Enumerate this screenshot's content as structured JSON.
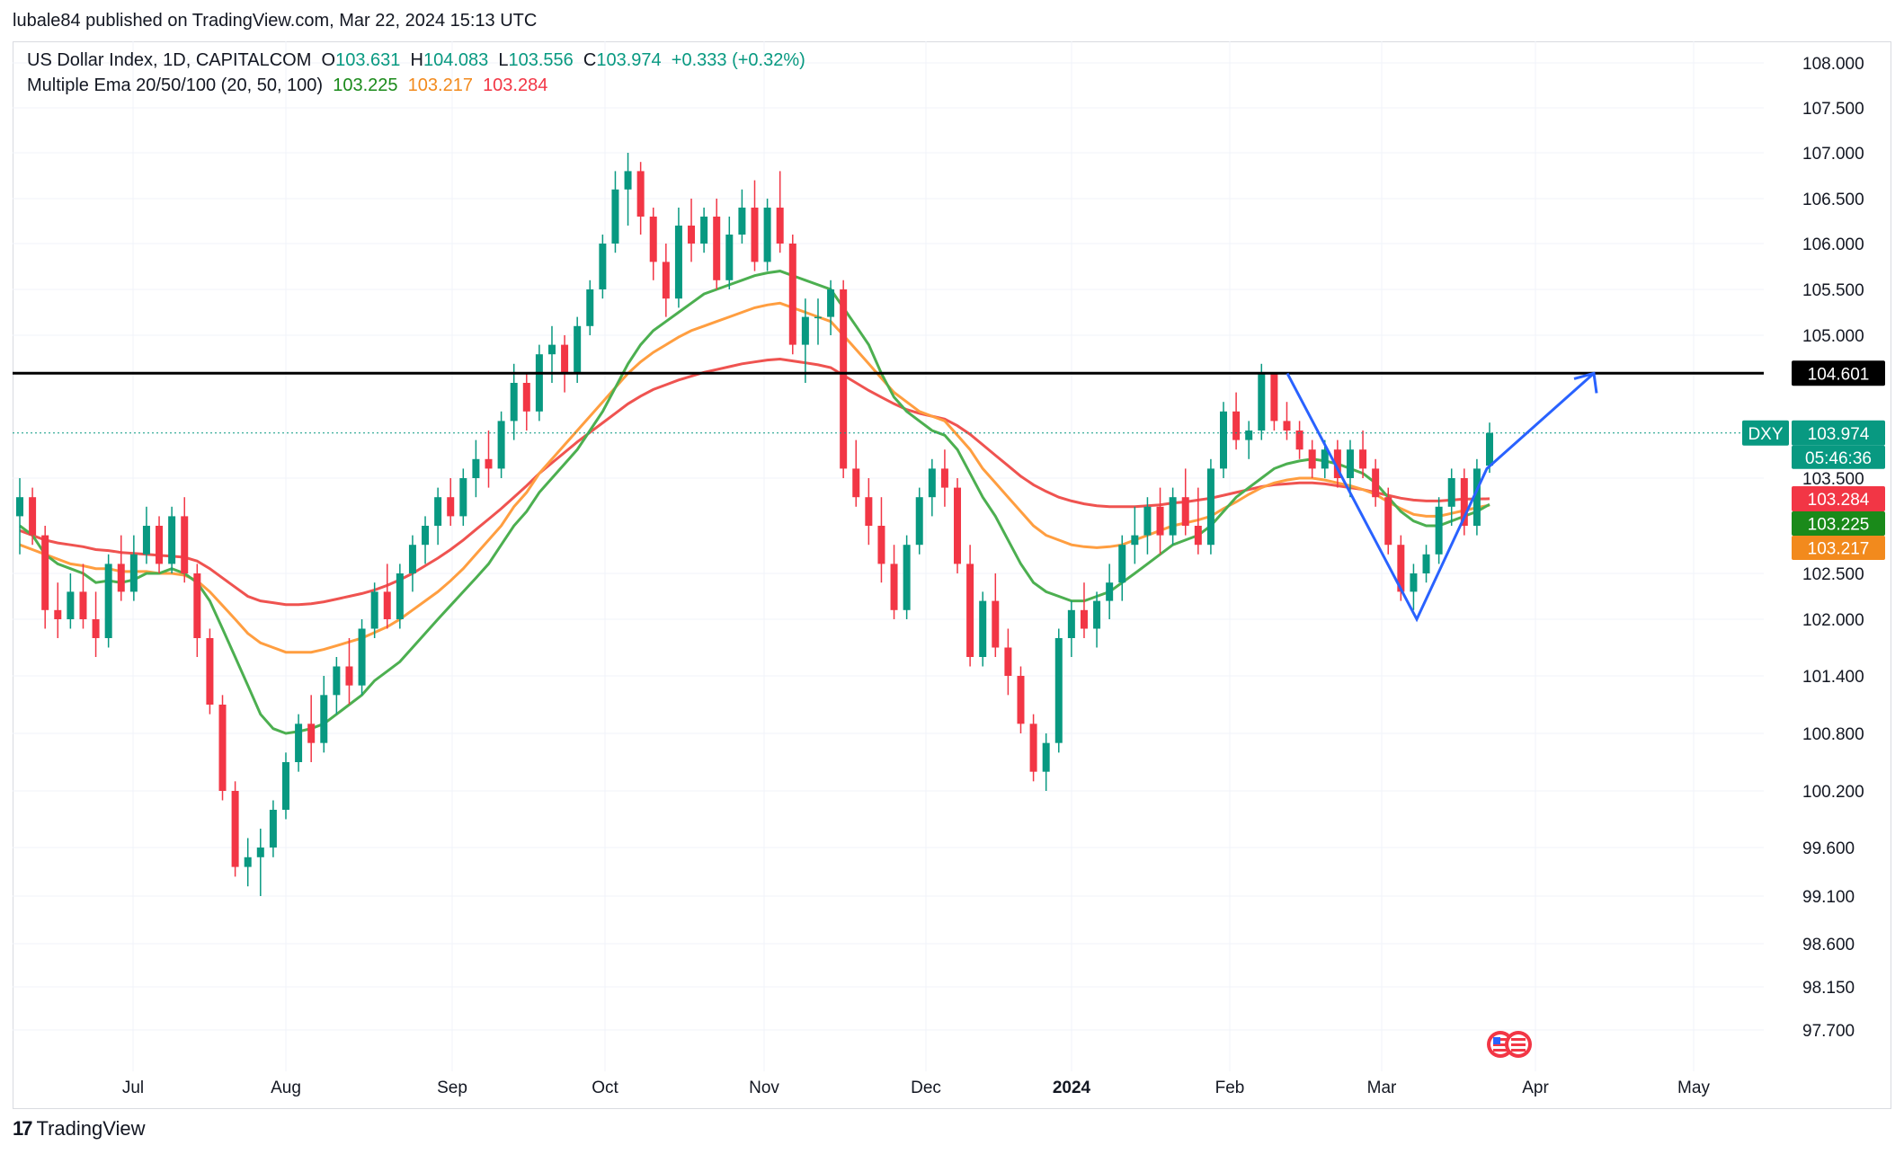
{
  "header": {
    "credit": "lubale84 published on TradingView.com, Mar 22, 2024 15:13 UTC"
  },
  "legend": {
    "symbol": "US Dollar Index, 1D, CAPITALCOM",
    "o_label": "O",
    "o_value": "103.631",
    "h_label": "H",
    "h_value": "104.083",
    "l_label": "L",
    "l_value": "103.556",
    "c_label": "C",
    "c_value": "103.974",
    "change": "+0.333 (+0.32%)",
    "indicator": "Multiple Ema 20/50/100 (20, 50, 100)",
    "ema20": "103.225",
    "ema50": "103.217",
    "ema100": "103.284"
  },
  "footer": {
    "brand": "TradingView",
    "mark": "17"
  },
  "colors": {
    "up": "#089981",
    "down": "#f23645",
    "ema20": "#4caf50",
    "ema50": "#ff9e40",
    "ema100": "#ef5350",
    "resistance": "#000000",
    "pattern": "#2962ff"
  },
  "chart_data": {
    "type": "candlestick",
    "symbol": "DXY",
    "price_axis": {
      "ticks": [
        "108.000",
        "107.500",
        "107.000",
        "106.500",
        "106.000",
        "105.500",
        "105.000",
        "103.500",
        "102.500",
        "102.000",
        "101.400",
        "100.800",
        "100.200",
        "99.600",
        "99.100",
        "98.600",
        "98.150",
        "97.700"
      ],
      "ylim": [
        97.4,
        108.4
      ]
    },
    "time_axis": {
      "ticks": [
        "Jul",
        "Aug",
        "Sep",
        "Oct",
        "Nov",
        "Dec",
        "2024",
        "Feb",
        "Mar",
        "Apr",
        "May"
      ]
    },
    "badges": {
      "resistance": "104.601",
      "symbol_tag": "DXY",
      "last_price": "103.974",
      "countdown": "05:46:36",
      "ema100": "103.284",
      "ema20": "103.225",
      "ema50": "103.217"
    },
    "resistance_level": 104.601,
    "candles": [
      [
        103.1,
        103.5,
        102.7,
        103.3
      ],
      [
        103.3,
        103.4,
        102.8,
        102.9
      ],
      [
        102.9,
        103.0,
        101.9,
        102.1
      ],
      [
        102.1,
        102.4,
        101.8,
        102.0
      ],
      [
        102.0,
        102.5,
        101.9,
        102.3
      ],
      [
        102.3,
        102.6,
        101.9,
        102.0
      ],
      [
        102.0,
        102.3,
        101.6,
        101.8
      ],
      [
        101.8,
        102.7,
        101.7,
        102.6
      ],
      [
        102.6,
        102.9,
        102.2,
        102.3
      ],
      [
        102.3,
        102.9,
        102.2,
        102.7
      ],
      [
        102.7,
        103.2,
        102.6,
        103.0
      ],
      [
        103.0,
        103.1,
        102.5,
        102.6
      ],
      [
        102.6,
        103.2,
        102.5,
        103.1
      ],
      [
        103.1,
        103.3,
        102.4,
        102.5
      ],
      [
        102.5,
        102.6,
        101.6,
        101.8
      ],
      [
        101.8,
        101.9,
        101.0,
        101.1
      ],
      [
        101.1,
        101.2,
        100.1,
        100.2
      ],
      [
        100.2,
        100.3,
        99.3,
        99.4
      ],
      [
        99.4,
        99.7,
        99.2,
        99.5
      ],
      [
        99.5,
        99.8,
        99.1,
        99.6
      ],
      [
        99.6,
        100.1,
        99.5,
        100.0
      ],
      [
        100.0,
        100.6,
        99.9,
        100.5
      ],
      [
        100.5,
        101.0,
        100.4,
        100.9
      ],
      [
        100.9,
        101.2,
        100.5,
        100.7
      ],
      [
        100.7,
        101.4,
        100.6,
        101.2
      ],
      [
        101.2,
        101.6,
        101.0,
        101.5
      ],
      [
        101.5,
        101.8,
        101.1,
        101.3
      ],
      [
        101.3,
        102.0,
        101.2,
        101.9
      ],
      [
        101.9,
        102.4,
        101.8,
        102.3
      ],
      [
        102.3,
        102.6,
        101.9,
        102.0
      ],
      [
        102.0,
        102.6,
        101.9,
        102.5
      ],
      [
        102.5,
        102.9,
        102.3,
        102.8
      ],
      [
        102.8,
        103.1,
        102.6,
        103.0
      ],
      [
        103.0,
        103.4,
        102.8,
        103.3
      ],
      [
        103.3,
        103.5,
        103.0,
        103.1
      ],
      [
        103.1,
        103.6,
        103.0,
        103.5
      ],
      [
        103.5,
        103.9,
        103.3,
        103.7
      ],
      [
        103.7,
        104.0,
        103.4,
        103.6
      ],
      [
        103.6,
        104.2,
        103.5,
        104.1
      ],
      [
        104.1,
        104.7,
        103.9,
        104.5
      ],
      [
        104.5,
        104.6,
        104.0,
        104.2
      ],
      [
        104.2,
        104.9,
        104.1,
        104.8
      ],
      [
        104.8,
        105.1,
        104.5,
        104.9
      ],
      [
        104.9,
        105.0,
        104.4,
        104.6
      ],
      [
        104.6,
        105.2,
        104.5,
        105.1
      ],
      [
        105.1,
        105.6,
        105.0,
        105.5
      ],
      [
        105.5,
        106.1,
        105.4,
        106.0
      ],
      [
        106.0,
        106.8,
        105.9,
        106.6
      ],
      [
        106.6,
        107.0,
        106.2,
        106.8
      ],
      [
        106.8,
        106.9,
        106.1,
        106.3
      ],
      [
        106.3,
        106.4,
        105.6,
        105.8
      ],
      [
        105.8,
        106.0,
        105.2,
        105.4
      ],
      [
        105.4,
        106.4,
        105.3,
        106.2
      ],
      [
        106.2,
        106.5,
        105.8,
        106.0
      ],
      [
        106.0,
        106.4,
        105.9,
        106.3
      ],
      [
        106.3,
        106.5,
        105.5,
        105.6
      ],
      [
        105.6,
        106.3,
        105.5,
        106.1
      ],
      [
        106.1,
        106.6,
        106.0,
        106.4
      ],
      [
        106.4,
        106.7,
        105.7,
        105.8
      ],
      [
        105.8,
        106.5,
        105.7,
        106.4
      ],
      [
        106.4,
        106.8,
        105.9,
        106.0
      ],
      [
        106.0,
        106.1,
        104.8,
        104.9
      ],
      [
        104.9,
        105.4,
        104.5,
        105.2
      ],
      [
        105.2,
        105.4,
        104.9,
        105.2
      ],
      [
        105.2,
        105.6,
        105.0,
        105.5
      ],
      [
        105.5,
        105.6,
        103.5,
        103.6
      ],
      [
        103.6,
        103.9,
        103.2,
        103.3
      ],
      [
        103.3,
        103.5,
        102.8,
        103.0
      ],
      [
        103.0,
        103.3,
        102.4,
        102.6
      ],
      [
        102.6,
        102.8,
        102.0,
        102.1
      ],
      [
        102.1,
        102.9,
        102.0,
        102.8
      ],
      [
        102.8,
        103.4,
        102.7,
        103.3
      ],
      [
        103.3,
        103.7,
        103.1,
        103.6
      ],
      [
        103.6,
        103.8,
        103.2,
        103.4
      ],
      [
        103.4,
        103.5,
        102.5,
        102.6
      ],
      [
        102.6,
        102.8,
        101.5,
        101.6
      ],
      [
        101.6,
        102.3,
        101.5,
        102.2
      ],
      [
        102.2,
        102.5,
        101.6,
        101.7
      ],
      [
        101.7,
        101.9,
        101.2,
        101.4
      ],
      [
        101.4,
        101.5,
        100.8,
        100.9
      ],
      [
        100.9,
        101.0,
        100.3,
        100.4
      ],
      [
        100.4,
        100.8,
        100.2,
        100.7
      ],
      [
        100.7,
        101.9,
        100.6,
        101.8
      ],
      [
        101.8,
        102.2,
        101.6,
        102.1
      ],
      [
        102.1,
        102.4,
        101.8,
        101.9
      ],
      [
        101.9,
        102.3,
        101.7,
        102.2
      ],
      [
        102.2,
        102.6,
        102.0,
        102.4
      ],
      [
        102.4,
        102.9,
        102.2,
        102.8
      ],
      [
        102.8,
        103.2,
        102.6,
        102.9
      ],
      [
        102.9,
        103.3,
        102.7,
        103.2
      ],
      [
        103.2,
        103.4,
        102.7,
        102.9
      ],
      [
        102.9,
        103.4,
        102.8,
        103.3
      ],
      [
        103.3,
        103.6,
        102.9,
        103.0
      ],
      [
        103.0,
        103.4,
        102.7,
        102.8
      ],
      [
        102.8,
        103.7,
        102.7,
        103.6
      ],
      [
        103.6,
        104.3,
        103.5,
        104.2
      ],
      [
        104.2,
        104.4,
        103.8,
        103.9
      ],
      [
        103.9,
        104.1,
        103.7,
        104.0
      ],
      [
        104.0,
        104.7,
        103.9,
        104.6
      ],
      [
        104.6,
        104.6,
        104.0,
        104.1
      ],
      [
        104.1,
        104.3,
        103.9,
        104.0
      ],
      [
        104.0,
        104.1,
        103.7,
        103.8
      ],
      [
        103.8,
        103.9,
        103.5,
        103.6
      ],
      [
        103.6,
        103.9,
        103.5,
        103.8
      ],
      [
        103.8,
        103.9,
        103.4,
        103.5
      ],
      [
        103.5,
        103.9,
        103.3,
        103.8
      ],
      [
        103.8,
        104.0,
        103.5,
        103.6
      ],
      [
        103.6,
        103.7,
        103.2,
        103.3
      ],
      [
        103.3,
        103.4,
        102.7,
        102.8
      ],
      [
        102.8,
        102.9,
        102.2,
        102.3
      ],
      [
        102.3,
        102.6,
        102.1,
        102.5
      ],
      [
        102.5,
        102.8,
        102.4,
        102.7
      ],
      [
        102.7,
        103.3,
        102.6,
        103.2
      ],
      [
        103.2,
        103.6,
        103.0,
        103.5
      ],
      [
        103.5,
        103.6,
        102.9,
        103.0
      ],
      [
        103.0,
        103.7,
        102.9,
        103.6
      ],
      [
        103.631,
        104.083,
        103.556,
        103.974
      ]
    ],
    "ema20_points": [
      103.0,
      102.9,
      102.7,
      102.6,
      102.55,
      102.5,
      102.4,
      102.42,
      102.4,
      102.43,
      102.5,
      102.5,
      102.55,
      102.5,
      102.4,
      102.2,
      101.9,
      101.6,
      101.3,
      101.0,
      100.85,
      100.8,
      100.82,
      100.85,
      100.9,
      101.0,
      101.1,
      101.2,
      101.35,
      101.45,
      101.55,
      101.7,
      101.85,
      102.0,
      102.15,
      102.3,
      102.45,
      102.6,
      102.8,
      103.0,
      103.15,
      103.35,
      103.5,
      103.65,
      103.8,
      104.0,
      104.2,
      104.45,
      104.7,
      104.9,
      105.05,
      105.15,
      105.25,
      105.35,
      105.45,
      105.5,
      105.55,
      105.6,
      105.65,
      105.68,
      105.7,
      105.65,
      105.6,
      105.55,
      105.5,
      105.3,
      105.1,
      104.9,
      104.6,
      104.35,
      104.2,
      104.1,
      104.0,
      103.95,
      103.8,
      103.55,
      103.3,
      103.1,
      102.85,
      102.6,
      102.4,
      102.3,
      102.25,
      102.2,
      102.2,
      102.25,
      102.3,
      102.4,
      102.5,
      102.6,
      102.7,
      102.8,
      102.85,
      102.9,
      103.0,
      103.15,
      103.3,
      103.4,
      103.5,
      103.6,
      103.65,
      103.68,
      103.7,
      103.68,
      103.65,
      103.6,
      103.55,
      103.45,
      103.3,
      103.15,
      103.05,
      103.0,
      103.0,
      103.05,
      103.1,
      103.15,
      103.225
    ],
    "ema50_points": [
      102.8,
      102.75,
      102.7,
      102.65,
      102.6,
      102.58,
      102.55,
      102.55,
      102.52,
      102.52,
      102.52,
      102.5,
      102.5,
      102.48,
      102.42,
      102.3,
      102.15,
      102.0,
      101.85,
      101.75,
      101.7,
      101.65,
      101.65,
      101.65,
      101.68,
      101.72,
      101.76,
      101.8,
      101.86,
      101.92,
      102.0,
      102.1,
      102.2,
      102.3,
      102.42,
      102.55,
      102.7,
      102.85,
      103.0,
      103.2,
      103.35,
      103.55,
      103.7,
      103.85,
      104.0,
      104.15,
      104.3,
      104.45,
      104.6,
      104.72,
      104.82,
      104.9,
      104.98,
      105.05,
      105.1,
      105.15,
      105.2,
      105.25,
      105.3,
      105.33,
      105.35,
      105.3,
      105.25,
      105.2,
      105.15,
      105.0,
      104.85,
      104.7,
      104.55,
      104.4,
      104.3,
      104.2,
      104.15,
      104.1,
      103.95,
      103.8,
      103.6,
      103.45,
      103.3,
      103.15,
      103.0,
      102.9,
      102.85,
      102.8,
      102.78,
      102.77,
      102.78,
      102.8,
      102.85,
      102.9,
      102.95,
      103.0,
      103.03,
      103.06,
      103.1,
      103.18,
      103.25,
      103.33,
      103.4,
      103.45,
      103.48,
      103.5,
      103.5,
      103.48,
      103.45,
      103.42,
      103.38,
      103.33,
      103.25,
      103.18,
      103.12,
      103.1,
      103.1,
      103.13,
      103.16,
      103.19,
      103.217
    ],
    "ema100_points": [
      102.95,
      102.9,
      102.85,
      102.82,
      102.8,
      102.78,
      102.75,
      102.74,
      102.72,
      102.71,
      102.7,
      102.69,
      102.68,
      102.67,
      102.63,
      102.55,
      102.45,
      102.35,
      102.25,
      102.2,
      102.18,
      102.16,
      102.16,
      102.17,
      102.19,
      102.22,
      102.25,
      102.28,
      102.32,
      102.37,
      102.43,
      102.5,
      102.58,
      102.66,
      102.75,
      102.85,
      102.96,
      103.07,
      103.18,
      103.3,
      103.42,
      103.55,
      103.66,
      103.77,
      103.88,
      103.98,
      104.08,
      104.18,
      104.28,
      104.36,
      104.43,
      104.48,
      104.53,
      104.57,
      104.61,
      104.64,
      104.67,
      104.7,
      104.72,
      104.74,
      104.75,
      104.73,
      104.71,
      104.69,
      104.66,
      104.58,
      104.5,
      104.42,
      104.35,
      104.28,
      104.22,
      104.18,
      104.15,
      104.12,
      104.05,
      103.96,
      103.85,
      103.74,
      103.63,
      103.52,
      103.43,
      103.36,
      103.3,
      103.26,
      103.23,
      103.21,
      103.2,
      103.2,
      103.2,
      103.21,
      103.22,
      103.24,
      103.25,
      103.27,
      103.29,
      103.32,
      103.35,
      103.38,
      103.41,
      103.43,
      103.44,
      103.45,
      103.45,
      103.44,
      103.42,
      103.4,
      103.38,
      103.35,
      103.32,
      103.29,
      103.27,
      103.26,
      103.26,
      103.27,
      103.28,
      103.28,
      103.284
    ],
    "pattern_prices": [
      104.6,
      102.0,
      103.6,
      104.6
    ]
  }
}
